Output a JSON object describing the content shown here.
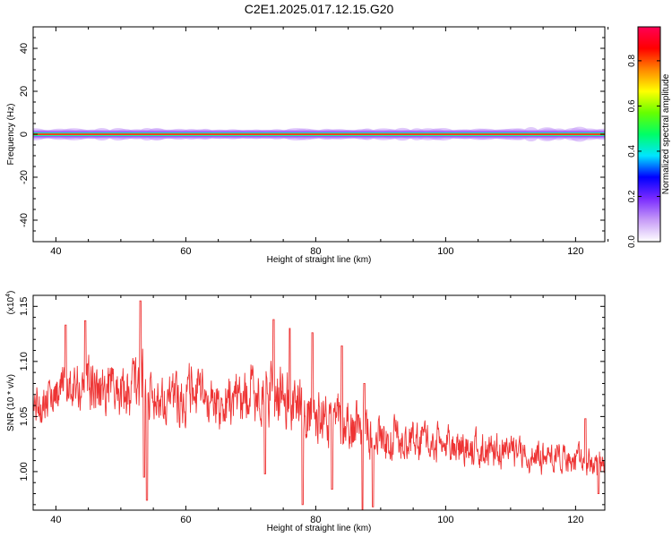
{
  "title": "C2E1.2025.017.12.15.G20",
  "colors": {
    "signal": "#ee2222",
    "trace": "#ee3333",
    "band": "#7a2bff",
    "axis": "#000000"
  },
  "chart_data": [
    {
      "type": "heatmap",
      "xlabel": "Height of straight line (km)",
      "ylabel": "Frequency (Hz)",
      "xlim": [
        36.5,
        124.5
      ],
      "ylim": [
        -50,
        50
      ],
      "xticks": [
        40,
        60,
        80,
        100,
        120
      ],
      "yticks": [
        40,
        20,
        0,
        -20,
        -40
      ],
      "signal_frequency_hz": 0,
      "band_halfwidth_hz": [
        2,
        3
      ],
      "colorbar": {
        "label": "Normalized spectral amplitude",
        "range": [
          0,
          0.95
        ],
        "ticks": [
          0.0,
          0.2,
          0.4,
          0.6,
          0.8
        ],
        "tick_labels": [
          "0.0",
          "0.2",
          "0.4",
          "0.6",
          "0.8"
        ],
        "colors": [
          "#ffffff",
          "#c79cf7",
          "#7a2bff",
          "#0000ff",
          "#00e5ff",
          "#00ff66",
          "#66ff00",
          "#ffff00",
          "#ff8800",
          "#ff0000",
          "#ff0055"
        ]
      }
    },
    {
      "type": "line",
      "xlabel": "Height of straight line (km)",
      "ylabel": "SNR (10 * v/v)",
      "scale_label": "(x10",
      "scale_exp": "4",
      "scale_close": ")",
      "xlim": [
        36.5,
        124.5
      ],
      "ylim": [
        0.965,
        1.16
      ],
      "xticks": [
        40,
        60,
        80,
        100,
        120
      ],
      "yticks": [
        1.15,
        1.1,
        1.05,
        1.0
      ],
      "ytick_labels": [
        "1.15",
        "1.10",
        "1.05",
        "1.00"
      ],
      "series": [
        {
          "envelope": {
            "x": [
              36.5,
              40,
              45,
              50,
              53,
              56,
              60,
              65,
              70,
              75,
              80,
              85,
              88,
              90,
              95,
              100,
              105,
              110,
              115,
              120,
              124.5
            ],
            "lo": [
              1.03,
              1.045,
              1.04,
              1.035,
              1.03,
              1.035,
              1.03,
              1.025,
              1.03,
              1.03,
              1.01,
              1.01,
              1.0,
              1.0,
              1.0,
              1.0,
              0.995,
              0.995,
              0.99,
              0.99,
              0.985
            ],
            "hi": [
              1.09,
              1.1,
              1.12,
              1.11,
              1.13,
              1.1,
              1.11,
              1.1,
              1.11,
              1.11,
              1.09,
              1.08,
              1.07,
              1.06,
              1.055,
              1.05,
              1.045,
              1.04,
              1.035,
              1.03,
              1.025
            ]
          },
          "peaks": [
            [
              41.5,
              1.133
            ],
            [
              44.5,
              1.137
            ],
            [
              53.0,
              1.155
            ],
            [
              73.5,
              1.138
            ],
            [
              76.0,
              1.13
            ],
            [
              79.5,
              1.126
            ],
            [
              84.0,
              1.114
            ],
            [
              87.5,
              1.08
            ],
            [
              121.5,
              1.048
            ]
          ],
          "dips": [
            [
              53.6,
              0.995
            ],
            [
              54.0,
              0.974
            ],
            [
              72.2,
              0.998
            ],
            [
              78.0,
              0.97
            ],
            [
              82.5,
              0.984
            ],
            [
              87.2,
              0.965
            ],
            [
              88.8,
              0.968
            ],
            [
              123.5,
              0.98
            ]
          ],
          "samples": 1400
        }
      ]
    }
  ]
}
